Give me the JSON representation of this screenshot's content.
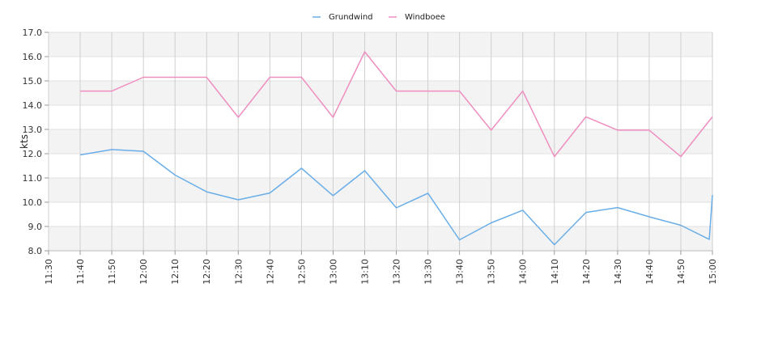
{
  "chart_data": {
    "type": "line",
    "ylabel": "kts",
    "ylim": [
      8.0,
      17.0
    ],
    "y_ticks": [
      "8.0",
      "9.0",
      "10.0",
      "11.0",
      "12.0",
      "13.0",
      "14.0",
      "15.0",
      "16.0",
      "17.0"
    ],
    "x_ticks": [
      "11:30",
      "11:40",
      "11:50",
      "12:00",
      "12:10",
      "12:20",
      "12:30",
      "12:40",
      "12:50",
      "13:00",
      "13:10",
      "13:20",
      "13:30",
      "13:40",
      "13:50",
      "14:00",
      "14:10",
      "14:20",
      "14:30",
      "14:40",
      "14:50",
      "15:00"
    ],
    "xlim": [
      "11:30",
      "15:00"
    ],
    "grid": true,
    "alternating_bands": true,
    "legend_position": "top-center",
    "series": [
      {
        "name": "Grundwind",
        "color": "#6aaee8",
        "points": [
          [
            "11:40",
            11.95
          ],
          [
            "11:50",
            12.17
          ],
          [
            "12:00",
            12.1
          ],
          [
            "12:10",
            11.12
          ],
          [
            "12:20",
            10.43
          ],
          [
            "12:30",
            10.1
          ],
          [
            "12:40",
            10.38
          ],
          [
            "12:50",
            11.4
          ],
          [
            "13:00",
            10.27
          ],
          [
            "13:10",
            11.3
          ],
          [
            "13:20",
            9.77
          ],
          [
            "13:30",
            10.37
          ],
          [
            "13:40",
            8.45
          ],
          [
            "13:50",
            9.15
          ],
          [
            "14:00",
            9.67
          ],
          [
            "14:10",
            8.25
          ],
          [
            "14:20",
            9.58
          ],
          [
            "14:30",
            9.78
          ],
          [
            "14:40",
            9.4
          ],
          [
            "14:50",
            9.05
          ],
          [
            "14:59",
            8.47
          ],
          [
            "15:00",
            10.3
          ]
        ]
      },
      {
        "name": "Windboee",
        "color": "#ef8fbf",
        "points": [
          [
            "11:40",
            14.58
          ],
          [
            "11:50",
            14.58
          ],
          [
            "12:00",
            15.15
          ],
          [
            "12:10",
            15.15
          ],
          [
            "12:20",
            15.15
          ],
          [
            "12:30",
            13.5
          ],
          [
            "12:40",
            15.15
          ],
          [
            "12:50",
            15.15
          ],
          [
            "13:00",
            13.5
          ],
          [
            "13:10",
            16.2
          ],
          [
            "13:20",
            14.58
          ],
          [
            "13:30",
            14.58
          ],
          [
            "13:40",
            14.58
          ],
          [
            "13:50",
            12.97
          ],
          [
            "14:00",
            14.58
          ],
          [
            "14:10",
            11.88
          ],
          [
            "14:20",
            13.52
          ],
          [
            "14:30",
            12.97
          ],
          [
            "14:40",
            12.97
          ],
          [
            "14:50",
            11.88
          ],
          [
            "15:00",
            13.52
          ]
        ]
      }
    ]
  }
}
